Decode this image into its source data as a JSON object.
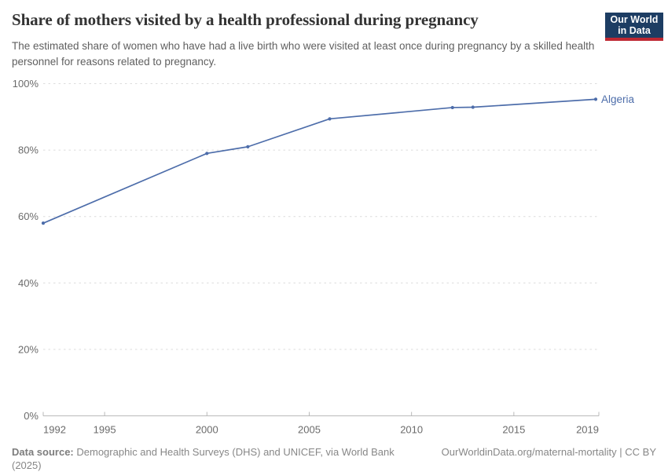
{
  "header": {
    "title": "Share of mothers visited by a health professional during pregnancy",
    "subtitle": "The estimated share of women who have had a live birth who were visited at least once during pregnancy by a skilled health personnel for reasons related to pregnancy.",
    "logo": {
      "line1": "Our World",
      "line2": "in Data"
    }
  },
  "chart_data": {
    "type": "line",
    "title": "Share of mothers visited by a health professional during pregnancy",
    "x": [
      1992,
      2000,
      2002,
      2006,
      2012,
      2013,
      2019
    ],
    "series": [
      {
        "name": "Algeria",
        "color": "#4d6daa",
        "values": [
          58,
          79,
          81,
          89.4,
          92.8,
          92.9,
          95.3
        ]
      }
    ],
    "xlim": [
      1992,
      2019
    ],
    "ylim": [
      0,
      100
    ],
    "x_ticks": [
      1992,
      1995,
      2000,
      2005,
      2010,
      2015,
      2019
    ],
    "y_ticks": [
      0,
      20,
      40,
      60,
      80,
      100
    ],
    "y_tick_suffix": "%",
    "grid": "horizontal-dashed",
    "legend": "line-end-label"
  },
  "colors": {
    "accent_line": "#4d6daa",
    "logo_bg": "#1d3d63",
    "logo_stripe": "#be2832",
    "gridline": "#dcdcdc",
    "axis": "#b9b9b9",
    "tick_label": "#6b6b6b"
  },
  "footer": {
    "source_label": "Data source:",
    "source_text": "Demographic and Health Surveys (DHS) and UNICEF, via World Bank (2025)",
    "link_text": "OurWorldinData.org/maternal-mortality | CC BY"
  }
}
